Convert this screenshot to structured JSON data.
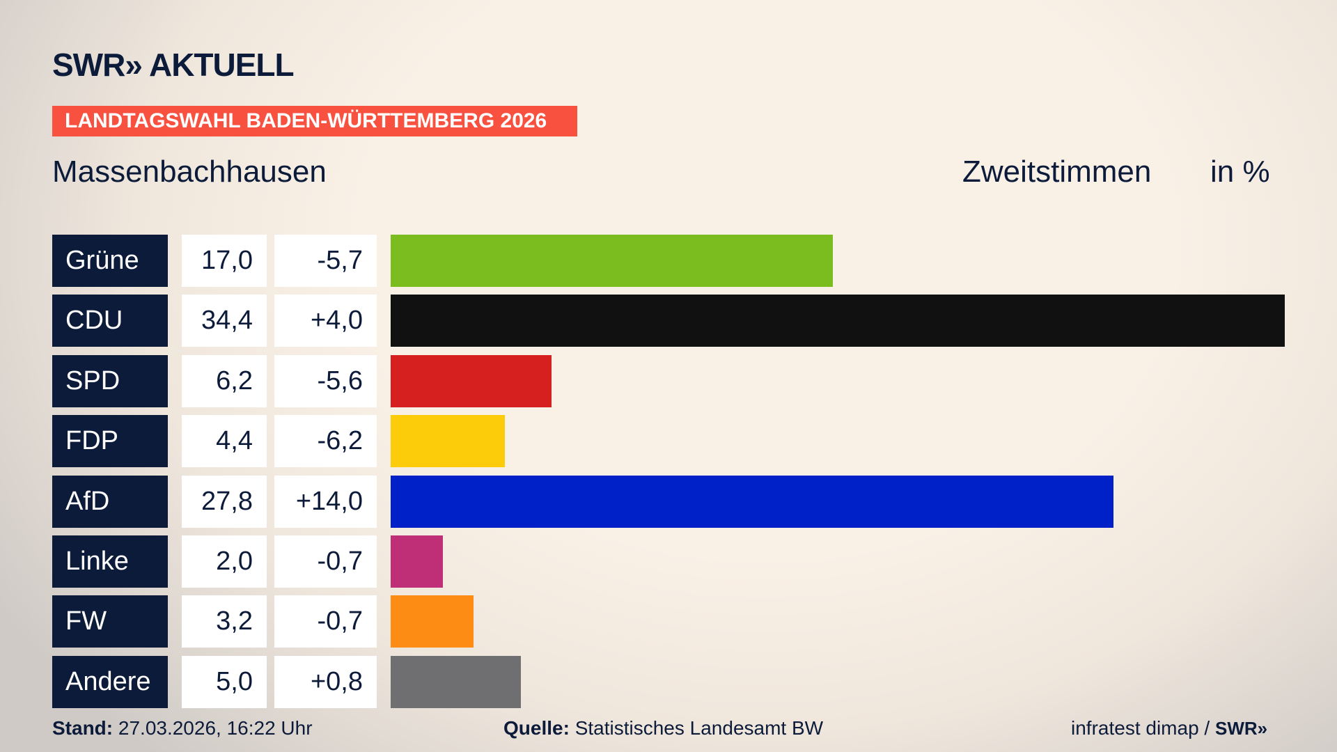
{
  "header": {
    "logo": "SWR» AKTUELL",
    "banner": "LANDTAGSWAHL BADEN-WÜRTTEMBERG 2026",
    "place": "Massenbachhausen",
    "measure": "Zweitstimmen",
    "unit": "in %"
  },
  "chart_data": {
    "type": "bar",
    "categories": [
      "Grüne",
      "CDU",
      "SPD",
      "FDP",
      "AfD",
      "Linke",
      "FW",
      "Andere"
    ],
    "values": [
      17.0,
      34.4,
      6.2,
      4.4,
      27.8,
      2.0,
      3.2,
      5.0
    ],
    "value_labels": [
      "17,0",
      "34,4",
      "6,2",
      "4,4",
      "27,8",
      "2,0",
      "3,2",
      "5,0"
    ],
    "changes": [
      -5.7,
      4.0,
      -5.6,
      -6.2,
      14.0,
      -0.7,
      -0.7,
      0.8
    ],
    "change_labels": [
      "-5,7",
      "+4,0",
      "-5,6",
      "-6,2",
      "+14,0",
      "-0,7",
      "-0,7",
      "+0,8"
    ],
    "colors": [
      "#7bbd1e",
      "#111111",
      "#d61f1f",
      "#fccc0a",
      "#0020c8",
      "#be2f78",
      "#fd8c15",
      "#6f6f72"
    ]
  },
  "footer": {
    "stand_label": "Stand:",
    "stand": "27.03.2026, 16:22 Uhr",
    "source_label": "Quelle:",
    "source": "Statistisches Landesamt BW",
    "credit": "infratest dimap /",
    "credit_logo": "SWR»"
  }
}
